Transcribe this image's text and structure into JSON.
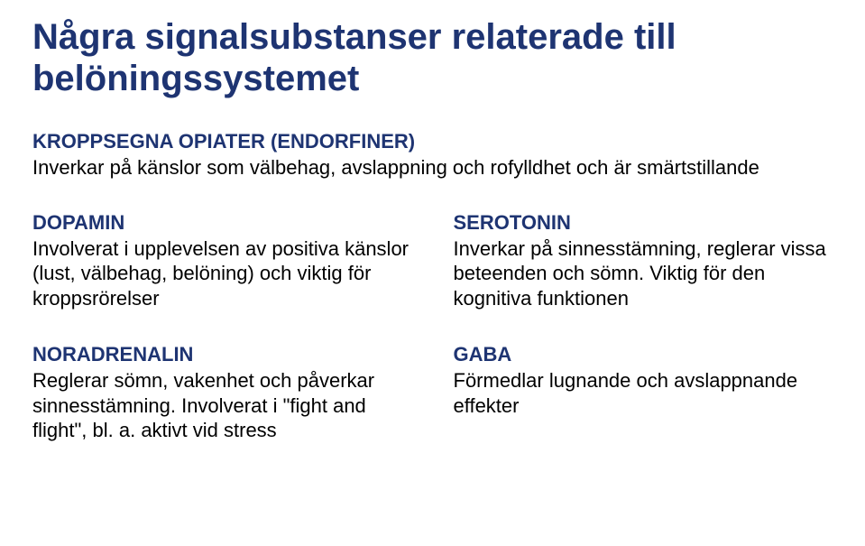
{
  "colors": {
    "heading": "#1e3472",
    "body": "#000000",
    "background": "#ffffff"
  },
  "typography": {
    "title_fontsize": 40,
    "heading_fontsize": 22,
    "body_fontsize": 22,
    "font_family": "Arial"
  },
  "title": "Några signalsubstanser relaterade till belöningssystemet",
  "intro": {
    "heading": "KROPPSEGNA OPIATER (ENDORFINER)",
    "body": "Inverkar på känslor som välbehag, avslappning och rofylldhet och är smärtstillande"
  },
  "row1": {
    "left": {
      "heading": "DOPAMIN",
      "body": "Involverat i upplevelsen av positiva känslor (lust, välbehag, belöning) och viktig för kroppsrörelser"
    },
    "right": {
      "heading": "SEROTONIN",
      "body": "Inverkar på sinnesstämning, reglerar vissa beteenden och sömn. Viktig för den kognitiva funktionen"
    }
  },
  "row2": {
    "left": {
      "heading": "NORADRENALIN",
      "body": "Reglerar sömn, vakenhet och påverkar sinnesstämning. Involverat i \"fight and flight\", bl. a. aktivt vid stress"
    },
    "right": {
      "heading": "GABA",
      "body": "Förmedlar lugnande och avslappnande effekter"
    }
  }
}
